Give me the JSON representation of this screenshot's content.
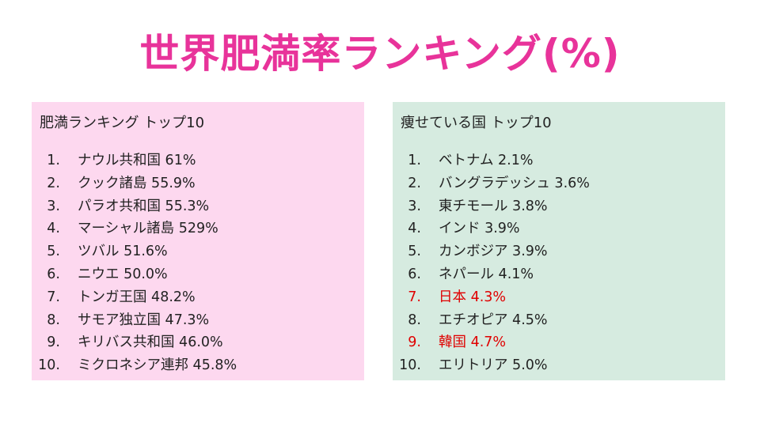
{
  "title": "世界肥満率ランキング(%)",
  "colors": {
    "title": "#e8339a",
    "left_panel_bg": "#fdd8ef",
    "right_panel_bg": "#d6ebe0",
    "highlight": "#e00000",
    "text": "#222222"
  },
  "left_panel": {
    "heading": "肥満ランキング トップ10",
    "items": [
      {
        "rank": "1.",
        "text": "ナウル共和国 61%"
      },
      {
        "rank": "2.",
        "text": "クック諸島 55.9%"
      },
      {
        "rank": "3.",
        "text": "パラオ共和国 55.3%"
      },
      {
        "rank": "4.",
        "text": "マーシャル諸島 529%"
      },
      {
        "rank": "5.",
        "text": "ツバル 51.6%"
      },
      {
        "rank": "6.",
        "text": "ニウエ 50.0%"
      },
      {
        "rank": "7.",
        "text": "トンガ王国 48.2%"
      },
      {
        "rank": "8.",
        "text": "サモア独立国 47.3%"
      },
      {
        "rank": "9.",
        "text": "キリバス共和国 46.0%"
      },
      {
        "rank": "10.",
        "text": "ミクロネシア連邦 45.8%"
      }
    ]
  },
  "right_panel": {
    "heading": "痩せている国 トップ10",
    "items": [
      {
        "rank": "1.",
        "text": "ベトナム 2.1%",
        "highlight": false
      },
      {
        "rank": "2.",
        "text": "バングラデッシュ 3.6%",
        "highlight": false
      },
      {
        "rank": "3.",
        "text": "東チモール 3.8%",
        "highlight": false
      },
      {
        "rank": "4.",
        "text": "インド 3.9%",
        "highlight": false
      },
      {
        "rank": "5.",
        "text": "カンボジア 3.9%",
        "highlight": false
      },
      {
        "rank": "6.",
        "text": "ネパール 4.1%",
        "highlight": false
      },
      {
        "rank": "7.",
        "text": "日本 4.3%",
        "highlight": true
      },
      {
        "rank": "8.",
        "text": "エチオピア 4.5%",
        "highlight": false
      },
      {
        "rank": "9.",
        "text": "韓国 4.7%",
        "highlight": true
      },
      {
        "rank": "10.",
        "text": "エリトリア 5.0%",
        "highlight": false
      }
    ]
  }
}
